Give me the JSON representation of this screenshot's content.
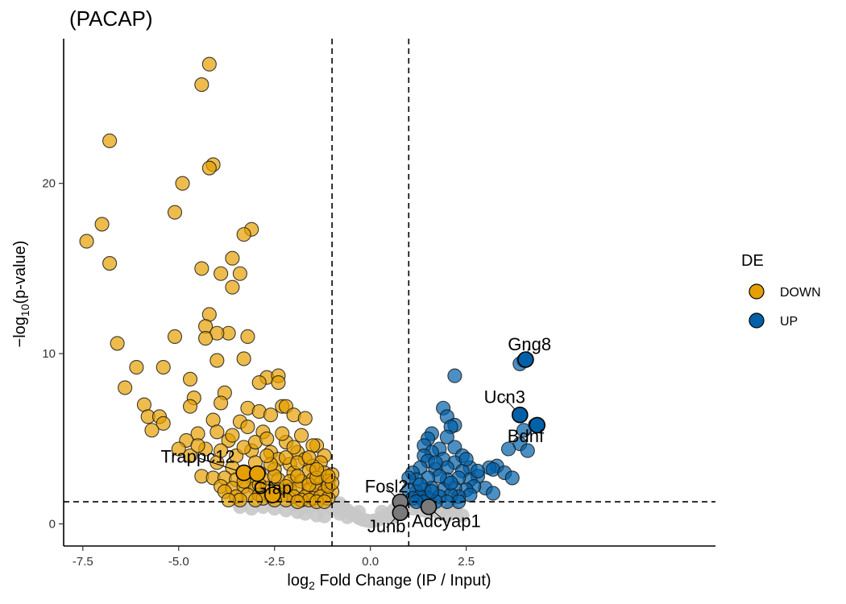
{
  "chart_data": {
    "type": "scatter",
    "title": "(PACAP)",
    "xlabel_main": "log",
    "xlabel_sub": "2",
    "xlabel_rest": " Fold Change (IP / Input)",
    "ylabel_pre": "−log",
    "ylabel_sub": "10",
    "ylabel_rest": "(p-value)",
    "xlim": [
      -8.0,
      9.0
    ],
    "ylim": [
      -1.3,
      28.5
    ],
    "xticks": [
      {
        "value": -7.5,
        "label": "-7.5"
      },
      {
        "value": -5.0,
        "label": "-5.0"
      },
      {
        "value": -2.5,
        "label": "-2.5"
      },
      {
        "value": 0.0,
        "label": "0.0"
      },
      {
        "value": 2.5,
        "label": "2.5"
      }
    ],
    "yticks": [
      {
        "value": 0,
        "label": "0"
      },
      {
        "value": 10,
        "label": "10"
      },
      {
        "value": 20,
        "label": "20"
      }
    ],
    "thresholds": {
      "x": [
        -1.0,
        1.0
      ],
      "y": 1.3
    },
    "grid": false,
    "legend": {
      "title": "DE",
      "position": "right",
      "entries": [
        {
          "label": "DOWN",
          "color": "#E69F00"
        },
        {
          "label": "UP",
          "color": "#0060A8"
        }
      ]
    },
    "colors": {
      "DOWN": "#E69F00",
      "UP": "#0060A8",
      "NS": "#C8C8C8",
      "highlight": "#7A7A7A"
    },
    "series": [
      {
        "name": "DOWN",
        "points": [
          [
            -4.2,
            27.0
          ],
          [
            -4.4,
            25.8
          ],
          [
            -6.8,
            22.5
          ],
          [
            -4.1,
            21.1
          ],
          [
            -4.2,
            20.9
          ],
          [
            -4.9,
            20.0
          ],
          [
            -7.0,
            17.6
          ],
          [
            -5.1,
            18.3
          ],
          [
            -7.4,
            16.6
          ],
          [
            -3.1,
            17.3
          ],
          [
            -3.3,
            17.0
          ],
          [
            -6.8,
            15.3
          ],
          [
            -3.6,
            15.6
          ],
          [
            -4.4,
            15.0
          ],
          [
            -3.9,
            14.7
          ],
          [
            -3.4,
            14.7
          ],
          [
            -3.6,
            13.9
          ],
          [
            -4.2,
            12.3
          ],
          [
            -4.3,
            11.6
          ],
          [
            -3.7,
            11.2
          ],
          [
            -4.0,
            11.2
          ],
          [
            -3.2,
            11.0
          ],
          [
            -5.1,
            11.0
          ],
          [
            -4.3,
            10.9
          ],
          [
            -6.6,
            10.6
          ],
          [
            -4.0,
            9.6
          ],
          [
            -3.3,
            9.7
          ],
          [
            -6.1,
            9.2
          ],
          [
            -5.4,
            9.2
          ],
          [
            -4.7,
            8.5
          ],
          [
            -2.7,
            8.6
          ],
          [
            -2.4,
            8.7
          ],
          [
            -2.9,
            8.3
          ],
          [
            -2.4,
            8.3
          ],
          [
            -6.4,
            8.0
          ],
          [
            -3.8,
            7.7
          ],
          [
            -4.6,
            7.4
          ],
          [
            -3.9,
            7.1
          ],
          [
            -5.9,
            7.0
          ],
          [
            -4.7,
            6.9
          ],
          [
            -2.3,
            6.9
          ],
          [
            -2.2,
            6.9
          ],
          [
            -3.2,
            6.8
          ],
          [
            -2.9,
            6.6
          ],
          [
            -2.6,
            6.4
          ],
          [
            -2.0,
            6.4
          ],
          [
            -5.8,
            6.3
          ],
          [
            -5.5,
            6.3
          ],
          [
            -4.1,
            6.1
          ],
          [
            -5.4,
            5.9
          ],
          [
            -3.4,
            6.0
          ],
          [
            -1.7,
            6.2
          ],
          [
            -3.2,
            5.7
          ],
          [
            -5.7,
            5.5
          ],
          [
            -4.5,
            5.3
          ],
          [
            -4.0,
            5.4
          ],
          [
            -2.8,
            5.4
          ],
          [
            -1.8,
            5.2
          ],
          [
            -4.8,
            4.9
          ],
          [
            -3.7,
            4.9
          ],
          [
            -2.2,
            4.8
          ],
          [
            -1.4,
            4.6
          ],
          [
            -1.5,
            4.6
          ],
          [
            -5.0,
            4.4
          ],
          [
            -4.3,
            4.4
          ],
          [
            -3.1,
            4.3
          ],
          [
            -2.6,
            4.2
          ],
          [
            -1.9,
            4.2
          ],
          [
            -1.2,
            4.0
          ],
          [
            -4.7,
            4.0
          ],
          [
            -3.5,
            4.0
          ],
          [
            -2.4,
            3.8
          ],
          [
            -1.7,
            3.8
          ],
          [
            -1.3,
            3.6
          ],
          [
            -4.0,
            3.6
          ],
          [
            -3.0,
            3.6
          ],
          [
            -2.1,
            3.5
          ],
          [
            -1.5,
            3.4
          ],
          [
            -3.6,
            3.3
          ],
          [
            -3.3,
            3.0
          ],
          [
            -2.9,
            3.0
          ],
          [
            -2.5,
            3.2
          ],
          [
            -2.0,
            3.0
          ],
          [
            -1.6,
            3.1
          ],
          [
            -1.2,
            3.0
          ],
          [
            -1.0,
            2.9
          ],
          [
            -4.4,
            2.8
          ],
          [
            -4.1,
            2.7
          ],
          [
            -3.8,
            2.7
          ],
          [
            -3.5,
            2.6
          ],
          [
            -3.1,
            2.7
          ],
          [
            -2.8,
            2.6
          ],
          [
            -2.4,
            2.6
          ],
          [
            -2.1,
            2.5
          ],
          [
            -1.8,
            2.5
          ],
          [
            -1.5,
            2.6
          ],
          [
            -1.3,
            2.4
          ],
          [
            -1.1,
            2.5
          ],
          [
            -3.9,
            2.2
          ],
          [
            -3.6,
            2.1
          ],
          [
            -3.3,
            2.2
          ],
          [
            -3.0,
            2.1
          ],
          [
            -2.7,
            2.1
          ],
          [
            -2.4,
            2.0
          ],
          [
            -2.1,
            2.0
          ],
          [
            -1.9,
            2.1
          ],
          [
            -1.6,
            2.0
          ],
          [
            -1.4,
            2.0
          ],
          [
            -1.2,
            1.9
          ],
          [
            -1.0,
            1.9
          ],
          [
            -3.8,
            1.9
          ],
          [
            -3.2,
            1.7
          ],
          [
            -2.9,
            1.7
          ],
          [
            -2.6,
            1.6
          ],
          [
            -2.3,
            1.7
          ],
          [
            -2.0,
            1.6
          ],
          [
            -1.7,
            1.6
          ],
          [
            -1.5,
            1.5
          ],
          [
            -1.3,
            1.6
          ],
          [
            -1.1,
            1.5
          ],
          [
            -3.5,
            1.6
          ],
          [
            -2.2,
            1.4
          ],
          [
            -1.8,
            1.4
          ],
          [
            -1.6,
            1.4
          ],
          [
            -1.4,
            1.3
          ],
          [
            -1.2,
            1.3
          ],
          [
            -1.9,
            1.3
          ],
          [
            -2.5,
            1.4
          ],
          [
            -2.8,
            1.5
          ],
          [
            -3.0,
            1.4
          ],
          [
            -3.4,
            1.4
          ],
          [
            -3.7,
            1.4
          ],
          [
            -3.3,
            2.5
          ],
          [
            -2.9,
            2.3
          ],
          [
            -2.5,
            2.8
          ],
          [
            -2.2,
            2.2
          ],
          [
            -1.9,
            2.8
          ],
          [
            -1.6,
            2.3
          ],
          [
            -1.4,
            2.7
          ],
          [
            -1.1,
            2.2
          ],
          [
            -1.0,
            2.4
          ],
          [
            -2.6,
            3.5
          ],
          [
            -2.2,
            3.9
          ],
          [
            -1.9,
            3.6
          ],
          [
            -2.7,
            4.0
          ],
          [
            -3.3,
            4.5
          ],
          [
            -3.0,
            4.8
          ],
          [
            -2.7,
            5.0
          ],
          [
            -2.3,
            5.3
          ],
          [
            -3.6,
            5.2
          ],
          [
            -4.5,
            4.6
          ],
          [
            -3.9,
            4.3
          ],
          [
            -2.0,
            4.5
          ],
          [
            -1.6,
            3.9
          ],
          [
            -1.4,
            3.2
          ],
          [
            -1.1,
            2.8
          ]
        ]
      },
      {
        "name": "UP",
        "points": [
          [
            4.0,
            9.6
          ],
          [
            3.9,
            9.4
          ],
          [
            2.2,
            8.7
          ],
          [
            1.9,
            6.8
          ],
          [
            2.0,
            6.3
          ],
          [
            3.9,
            6.4
          ],
          [
            4.3,
            5.8
          ],
          [
            2.2,
            5.8
          ],
          [
            2.1,
            5.7
          ],
          [
            1.6,
            5.3
          ],
          [
            4.0,
            5.5
          ],
          [
            2.0,
            5.1
          ],
          [
            1.5,
            5.0
          ],
          [
            3.9,
            4.7
          ],
          [
            3.6,
            4.4
          ],
          [
            4.1,
            4.3
          ],
          [
            1.4,
            4.6
          ],
          [
            2.2,
            4.5
          ],
          [
            1.8,
            4.4
          ],
          [
            1.6,
            4.2
          ],
          [
            2.4,
            4.0
          ],
          [
            1.4,
            4.0
          ],
          [
            1.9,
            3.8
          ],
          [
            2.2,
            3.6
          ],
          [
            1.5,
            3.7
          ],
          [
            3.3,
            3.4
          ],
          [
            3.1,
            3.3
          ],
          [
            3.2,
            3.2
          ],
          [
            3.5,
            3.0
          ],
          [
            3.7,
            2.7
          ],
          [
            2.6,
            3.3
          ],
          [
            2.4,
            3.1
          ],
          [
            2.0,
            3.3
          ],
          [
            1.7,
            3.2
          ],
          [
            1.3,
            3.3
          ],
          [
            1.1,
            3.0
          ],
          [
            2.8,
            2.8
          ],
          [
            2.6,
            2.6
          ],
          [
            2.3,
            2.7
          ],
          [
            2.0,
            2.6
          ],
          [
            1.8,
            2.8
          ],
          [
            1.5,
            2.7
          ],
          [
            1.2,
            2.6
          ],
          [
            1.0,
            2.7
          ],
          [
            3.0,
            2.1
          ],
          [
            2.7,
            2.2
          ],
          [
            2.5,
            2.0
          ],
          [
            2.2,
            2.1
          ],
          [
            1.9,
            2.0
          ],
          [
            1.6,
            2.1
          ],
          [
            1.4,
            2.0
          ],
          [
            1.2,
            1.9
          ],
          [
            1.0,
            2.0
          ],
          [
            2.6,
            1.7
          ],
          [
            2.3,
            1.6
          ],
          [
            2.1,
            1.7
          ],
          [
            1.8,
            1.6
          ],
          [
            1.5,
            1.5
          ],
          [
            1.3,
            1.6
          ],
          [
            1.1,
            1.5
          ],
          [
            2.3,
            1.3
          ],
          [
            2.0,
            1.3
          ],
          [
            1.7,
            1.3
          ],
          [
            1.4,
            1.3
          ],
          [
            1.2,
            1.3
          ],
          [
            3.2,
            1.8
          ],
          [
            1.7,
            3.6
          ],
          [
            2.5,
            3.8
          ],
          [
            1.3,
            2.3
          ],
          [
            2.1,
            2.4
          ],
          [
            2.8,
            3.1
          ],
          [
            1.6,
            1.9
          ]
        ]
      },
      {
        "name": "NS",
        "points": [
          [
            -2.5,
            0.9
          ],
          [
            -2.2,
            0.8
          ],
          [
            -1.9,
            0.7
          ],
          [
            -1.7,
            0.6
          ],
          [
            -1.4,
            0.5
          ],
          [
            -1.2,
            0.45
          ],
          [
            -1.0,
            0.9
          ],
          [
            -0.9,
            1.1
          ],
          [
            -0.8,
            1.2
          ],
          [
            -0.7,
            1.0
          ],
          [
            -0.6,
            0.8
          ],
          [
            -0.5,
            0.6
          ],
          [
            -0.4,
            0.5
          ],
          [
            -0.3,
            0.35
          ],
          [
            -0.2,
            0.25
          ],
          [
            -0.1,
            0.2
          ],
          [
            0.0,
            0.15
          ],
          [
            0.1,
            0.2
          ],
          [
            0.2,
            0.25
          ],
          [
            0.3,
            0.35
          ],
          [
            0.4,
            0.5
          ],
          [
            0.5,
            0.6
          ],
          [
            0.6,
            0.8
          ],
          [
            0.7,
            1.0
          ],
          [
            0.8,
            1.1
          ],
          [
            0.9,
            1.2
          ],
          [
            1.1,
            0.9
          ],
          [
            1.3,
            0.8
          ],
          [
            1.5,
            0.7
          ],
          [
            1.8,
            0.6
          ],
          [
            2.0,
            0.5
          ],
          [
            2.2,
            0.7
          ],
          [
            2.4,
            0.5
          ],
          [
            -0.8,
            0.6
          ],
          [
            -0.6,
            0.4
          ],
          [
            -0.3,
            0.7
          ],
          [
            0.3,
            0.7
          ],
          [
            0.6,
            0.4
          ],
          [
            0.8,
            0.6
          ],
          [
            -1.6,
            1.0
          ],
          [
            -2.0,
            1.1
          ],
          [
            -2.8,
            1.0
          ],
          [
            -3.1,
            0.9
          ],
          [
            -3.4,
            1.0
          ],
          [
            -1.3,
            1.1
          ],
          [
            1.4,
            1.0
          ],
          [
            1.7,
            1.1
          ],
          [
            2.1,
            0.9
          ],
          [
            -0.95,
            1.25
          ],
          [
            -0.85,
            0.9
          ],
          [
            0.85,
            0.9
          ],
          [
            0.95,
            1.25
          ]
        ]
      }
    ],
    "highlighted_genes": [
      {
        "label": "Gng8",
        "x": 4.05,
        "y": 9.65,
        "group": "UP",
        "label_x": 4.15,
        "label_y": 10.2,
        "anchor": "middle"
      },
      {
        "label": "Ucn3",
        "x": 3.9,
        "y": 6.4,
        "group": "UP",
        "label_x": 3.5,
        "label_y": 7.1,
        "anchor": "middle"
      },
      {
        "label": "Bdnf",
        "x": 4.35,
        "y": 5.8,
        "group": "UP",
        "label_x": 4.05,
        "label_y": 4.8,
        "anchor": "middle"
      },
      {
        "label": "Trappc12",
        "x": -3.3,
        "y": 3.0,
        "group": "DOWN",
        "label_x": -4.5,
        "label_y": 3.6,
        "anchor": "middle"
      },
      {
        "label": "",
        "x": -2.95,
        "y": 2.95,
        "group": "DOWN"
      },
      {
        "label": "Gfap",
        "x": -2.55,
        "y": 1.7,
        "group": "DOWN",
        "label_x": -2.55,
        "label_y": 1.75,
        "anchor": "middle"
      },
      {
        "label": "Fosl2",
        "x": 0.78,
        "y": 1.3,
        "group": "NS",
        "label_x": 0.42,
        "label_y": 1.85,
        "anchor": "middle"
      },
      {
        "label": "Junb",
        "x": 0.78,
        "y": 0.65,
        "group": "NS",
        "label_x": 0.42,
        "label_y": -0.5,
        "anchor": "middle"
      },
      {
        "label": "Adcyap1",
        "x": 1.52,
        "y": 1.0,
        "group": "NS",
        "label_x": 1.98,
        "label_y": -0.2,
        "anchor": "middle"
      }
    ]
  }
}
